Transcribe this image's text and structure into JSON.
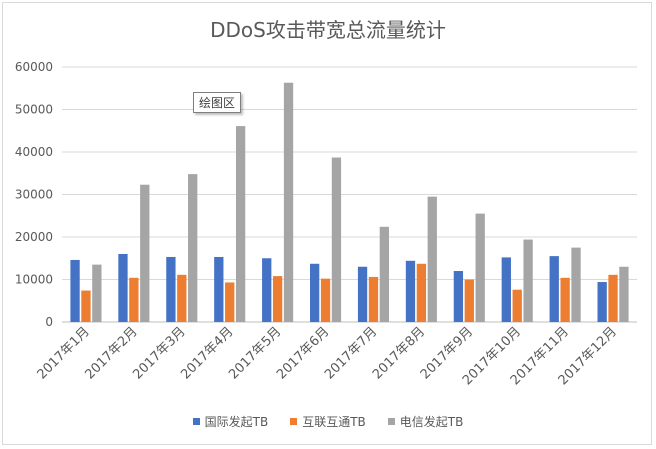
{
  "chart_data": {
    "type": "bar",
    "title": "DDoS攻击带宽总流量统计",
    "categories": [
      "2017年1月",
      "2017年2月",
      "2017年3月",
      "2017年4月",
      "2017年5月",
      "2017年6月",
      "2017年7月",
      "2017年8月",
      "2017年9月",
      "2017年10月",
      "2017年11月",
      "2017年12月"
    ],
    "series": [
      {
        "name": "国际发起TB",
        "color": "#4472c4",
        "values": [
          14600,
          16000,
          15300,
          15300,
          15000,
          13700,
          13000,
          14400,
          12000,
          15200,
          15500,
          9400
        ]
      },
      {
        "name": "互联互通TB",
        "color": "#ed7d31",
        "values": [
          7400,
          10400,
          11100,
          9300,
          10800,
          10200,
          10600,
          13700,
          10000,
          7600,
          10400,
          11100
        ]
      },
      {
        "name": "电信发起TB",
        "color": "#a5a5a5",
        "values": [
          13500,
          32300,
          34800,
          46100,
          56300,
          38700,
          22400,
          29500,
          25500,
          19400,
          17500,
          13000
        ]
      }
    ],
    "ylim": [
      0,
      60000
    ],
    "yticks": [
      0,
      10000,
      20000,
      30000,
      40000,
      50000,
      60000
    ],
    "grid": true,
    "legend_position": "bottom",
    "xlabel": "",
    "ylabel": ""
  },
  "tooltip_text": "绘图区"
}
